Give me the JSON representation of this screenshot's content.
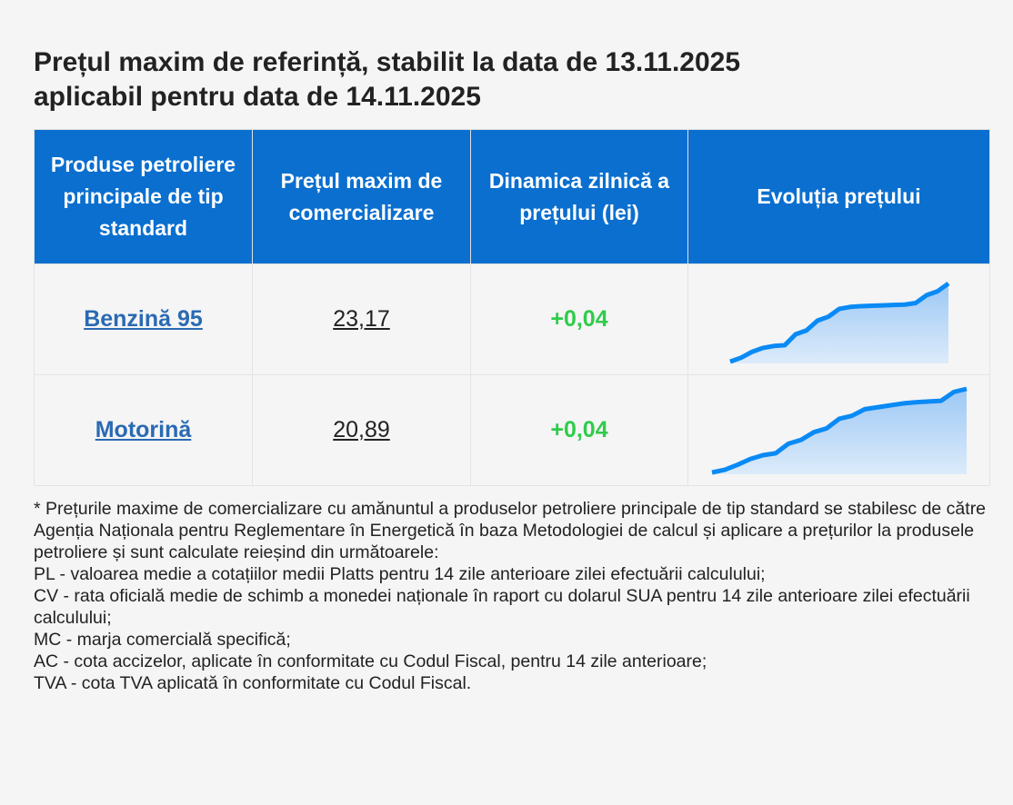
{
  "title_line1": "Prețul maxim de referință, stabilit la data de 13.11.2025",
  "title_line2": "aplicabil pentru data de 14.11.2025",
  "headers": [
    "Produse petroliere principale de tip standard",
    "Prețul maxim de comercializare",
    "Dinamica zilnică a prețului (lei)",
    "Evoluția prețului"
  ],
  "rows": [
    {
      "product": "Benzină 95",
      "price": "23,17",
      "change": "+0,04",
      "trend": [
        0,
        1,
        2.5,
        3.5,
        4,
        4.2,
        7,
        8,
        10.5,
        11.5,
        13.5,
        14,
        14.2,
        14.3,
        14.4,
        14.5,
        14.6,
        15,
        17,
        18,
        20
      ]
    },
    {
      "product": "Motorină",
      "price": "20,89",
      "change": "+0,04",
      "trend": [
        0,
        0.7,
        2,
        3.5,
        4.5,
        5,
        7.5,
        8.5,
        10.5,
        11.5,
        14,
        14.8,
        16.5,
        17,
        17.5,
        18,
        18.3,
        18.5,
        18.7,
        21,
        21.8
      ]
    }
  ],
  "colors": {
    "header_bg": "#0a6fcf",
    "link": "#2a6ab3",
    "positive": "#2fcc4a",
    "line": "#0a8af5"
  },
  "notes": [
    "* Prețurile maxime de comercializare cu amănuntul a produselor petroliere principale de tip standard se stabilesc de către Agenția Naționala pentru Reglementare în Energetică în baza Metodologiei de calcul și aplicare a prețurilor la produsele petroliere și sunt calculate reieșind din următoarele:",
    "PL - valoarea medie a cotațiilor medii Platts pentru 14 zile anterioare zilei efectuării calculului;",
    "CV - rata oficială medie de schimb a monedei naționale în raport cu dolarul SUA pentru 14 zile anterioare zilei efectuării calculului;",
    "MC - marja comercială specifică;",
    "AC - cota accizelor, aplicate în conformitate cu Codul Fiscal, pentru 14 zile anterioare;",
    "TVA - cota TVA aplicată în conformitate cu Codul Fiscal."
  ]
}
